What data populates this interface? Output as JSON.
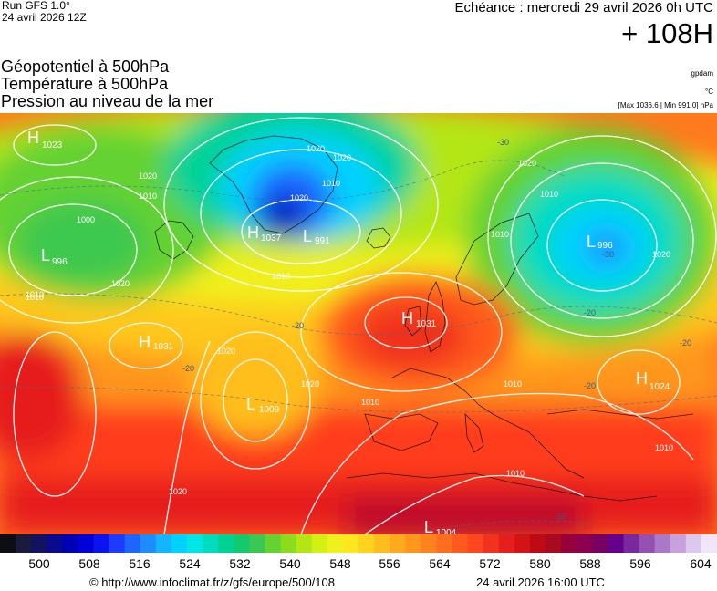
{
  "header": {
    "run_label": "Run GFS 1.0°",
    "run_date": "24 avril 2026 12Z",
    "valid_time": "Echéance : mercredi 29 avril 2026 0h UTC",
    "lead_time": "+ 108H"
  },
  "parameters": [
    "Géopotentiel à 500hPa",
    "Température à 500hPa",
    "Pression au niveau de la mer"
  ],
  "units": {
    "geopotential": "gpdam",
    "temperature": "°C",
    "pressure": "[Max 1036.6 | Min 991.0] hPa"
  },
  "pressure_systems": [
    {
      "type": "H",
      "value": "1023"
    },
    {
      "type": "L",
      "value": "996"
    },
    {
      "type": "H",
      "value": "1031"
    },
    {
      "type": "L",
      "value": "1009"
    },
    {
      "type": "H",
      "value": "1037"
    },
    {
      "type": "L",
      "value": "991"
    },
    {
      "type": "H",
      "value": "1031"
    },
    {
      "type": "L",
      "value": "996"
    },
    {
      "type": "H",
      "value": "1024"
    },
    {
      "type": "L",
      "value": "1004"
    }
  ],
  "isobar_labels": [
    "1020",
    "1010",
    "1000",
    "1020",
    "1010",
    "1020",
    "1020",
    "1010",
    "1020",
    "1010",
    "1020",
    "1010",
    "1020",
    "1010",
    "1010",
    "1010",
    "1020",
    "1020",
    "1010",
    "1010",
    "1020",
    "1010"
  ],
  "isotherm_labels": [
    "-30",
    "-20",
    "-20",
    "-30",
    "-20",
    "-20",
    "-20",
    "-10"
  ],
  "colorbar": {
    "ticks": [
      "500",
      "508",
      "516",
      "524",
      "532",
      "540",
      "548",
      "556",
      "564",
      "572",
      "580",
      "588",
      "596",
      "604"
    ],
    "colors": [
      "#0d0d14",
      "#1a1a3c",
      "#121260",
      "#0a0a8c",
      "#0000b4",
      "#0000d8",
      "#0a14f0",
      "#1e3cff",
      "#1e64ff",
      "#1e8cff",
      "#14b4ff",
      "#00d2ff",
      "#00e6e6",
      "#00dcbe",
      "#00d296",
      "#14c86e",
      "#3cc850",
      "#64d232",
      "#8cdc1e",
      "#b4e614",
      "#d2f014",
      "#f0f01e",
      "#ffe61e",
      "#ffd21e",
      "#ffbe1e",
      "#ffaa1e",
      "#ff961e",
      "#ff821e",
      "#ff6e1e",
      "#ff5a1e",
      "#ff461e",
      "#f0321e",
      "#e61e1e",
      "#d21414",
      "#be0a14",
      "#aa0a1e",
      "#96003c",
      "#8c0050",
      "#780064",
      "#64008c",
      "#7a28a0",
      "#9650b4",
      "#aa78c8",
      "#c8a0dc",
      "#dcc8ec",
      "#f0e6f8"
    ]
  },
  "footer": {
    "url": "© http://www.infoclimat.fr/z/gfs/europe/500/108",
    "date": "24 avril 2026 16:00 UTC"
  }
}
